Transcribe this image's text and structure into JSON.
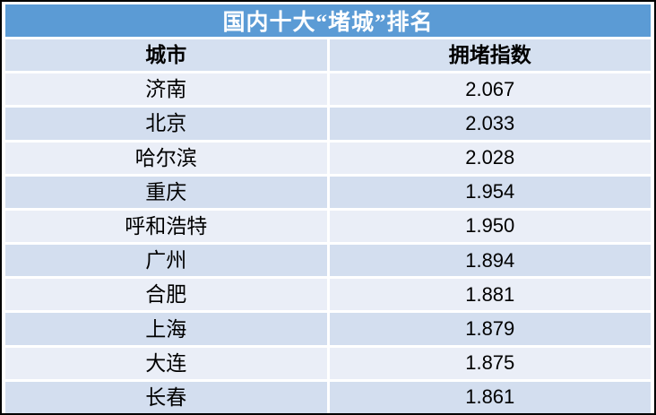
{
  "table": {
    "title": "国内十大“堵城”排名",
    "headers": {
      "city": "城市",
      "index": "拥堵指数"
    },
    "rows": [
      {
        "city": "济南",
        "index": "2.067"
      },
      {
        "city": "北京",
        "index": "2.033"
      },
      {
        "city": "哈尔滨",
        "index": "2.028"
      },
      {
        "city": "重庆",
        "index": "1.954"
      },
      {
        "city": "呼和浩特",
        "index": "1.950"
      },
      {
        "city": "广州",
        "index": "1.894"
      },
      {
        "city": "合肥",
        "index": "1.881"
      },
      {
        "city": "上海",
        "index": "1.879"
      },
      {
        "city": "大连",
        "index": "1.875"
      },
      {
        "city": "长春",
        "index": "1.861"
      }
    ]
  },
  "colors": {
    "title_bar": "#5B9BD5",
    "title_text": "#FFFFFF",
    "header_row": "#D5E0F0",
    "row_light": "#EAEEF7",
    "row_dark": "#D3DEEF",
    "gridline": "#FFFFFF",
    "outer_border": "#000000",
    "body_text": "#000000"
  },
  "chart_data": {
    "type": "table",
    "title": "国内十大“堵城”排名",
    "columns": [
      "城市",
      "拥堵指数"
    ],
    "categories": [
      "济南",
      "北京",
      "哈尔滨",
      "重庆",
      "呼和浩特",
      "广州",
      "合肥",
      "上海",
      "大连",
      "长春"
    ],
    "values": [
      2.067,
      2.033,
      2.028,
      1.954,
      1.95,
      1.894,
      1.881,
      1.879,
      1.875,
      1.861
    ],
    "value_label": "拥堵指数",
    "layout": "two-column table, title bar merged across columns, banded rows"
  }
}
